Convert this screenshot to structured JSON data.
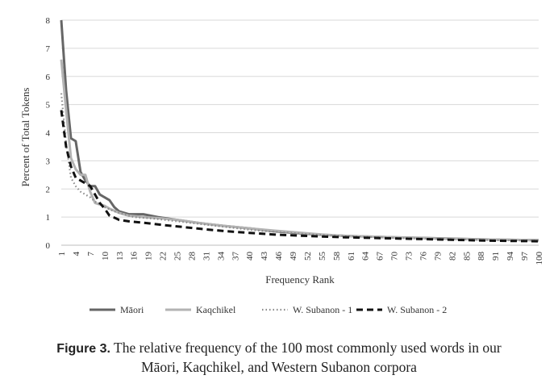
{
  "chart_data": {
    "type": "line",
    "xlabel": "Frequency Rank",
    "ylabel": "Percent of Total Tokens",
    "xlim": [
      1,
      100
    ],
    "ylim": [
      0,
      8
    ],
    "yticks": [
      0,
      1,
      2,
      3,
      4,
      5,
      6,
      7,
      8
    ],
    "xticks": [
      1,
      4,
      7,
      10,
      13,
      16,
      19,
      22,
      25,
      28,
      31,
      34,
      37,
      40,
      43,
      46,
      49,
      52,
      55,
      58,
      61,
      64,
      67,
      70,
      73,
      76,
      79,
      82,
      85,
      88,
      91,
      94,
      97,
      100
    ],
    "grid": "horizontal",
    "legend_position": "bottom",
    "series": [
      {
        "name": "Māori",
        "color": "#666666",
        "dash": "solid",
        "points": [
          [
            1,
            8.0
          ],
          [
            2,
            5.5
          ],
          [
            3,
            3.8
          ],
          [
            4,
            3.7
          ],
          [
            5,
            2.6
          ],
          [
            6,
            2.3
          ],
          [
            7,
            2.1
          ],
          [
            8,
            2.1
          ],
          [
            9,
            1.8
          ],
          [
            10,
            1.7
          ],
          [
            11,
            1.6
          ],
          [
            12,
            1.35
          ],
          [
            13,
            1.2
          ],
          [
            15,
            1.1
          ],
          [
            18,
            1.1
          ],
          [
            21,
            1.0
          ],
          [
            25,
            0.9
          ],
          [
            30,
            0.78
          ],
          [
            35,
            0.68
          ],
          [
            40,
            0.6
          ],
          [
            45,
            0.5
          ],
          [
            50,
            0.43
          ],
          [
            55,
            0.37
          ],
          [
            60,
            0.33
          ],
          [
            70,
            0.28
          ],
          [
            80,
            0.24
          ],
          [
            90,
            0.2
          ],
          [
            100,
            0.18
          ]
        ]
      },
      {
        "name": "Kaqchikel",
        "color": "#b3b3b3",
        "dash": "solid",
        "points": [
          [
            1,
            6.6
          ],
          [
            2,
            4.8
          ],
          [
            3,
            3.1
          ],
          [
            4,
            2.7
          ],
          [
            5,
            2.5
          ],
          [
            6,
            2.5
          ],
          [
            7,
            1.9
          ],
          [
            8,
            1.5
          ],
          [
            9,
            1.45
          ],
          [
            10,
            1.4
          ],
          [
            11,
            1.3
          ],
          [
            13,
            1.15
          ],
          [
            15,
            1.05
          ],
          [
            18,
            1.0
          ],
          [
            22,
            0.95
          ],
          [
            26,
            0.88
          ],
          [
            30,
            0.78
          ],
          [
            35,
            0.68
          ],
          [
            40,
            0.6
          ],
          [
            45,
            0.52
          ],
          [
            50,
            0.45
          ],
          [
            55,
            0.38
          ],
          [
            60,
            0.33
          ],
          [
            70,
            0.28
          ],
          [
            80,
            0.23
          ],
          [
            90,
            0.2
          ],
          [
            100,
            0.18
          ]
        ]
      },
      {
        "name": "W. Subanon - 1",
        "color": "#8a8a8a",
        "dash": "dotted",
        "points": [
          [
            1,
            5.4
          ],
          [
            2,
            3.6
          ],
          [
            3,
            2.4
          ],
          [
            4,
            2.1
          ],
          [
            5,
            1.9
          ],
          [
            6,
            1.8
          ],
          [
            7,
            1.7
          ],
          [
            8,
            1.55
          ],
          [
            9,
            1.45
          ],
          [
            10,
            1.35
          ],
          [
            12,
            1.2
          ],
          [
            14,
            1.1
          ],
          [
            16,
            1.0
          ],
          [
            20,
            0.95
          ],
          [
            25,
            0.85
          ],
          [
            30,
            0.75
          ],
          [
            35,
            0.65
          ],
          [
            40,
            0.55
          ],
          [
            45,
            0.48
          ],
          [
            50,
            0.42
          ],
          [
            55,
            0.36
          ],
          [
            60,
            0.32
          ],
          [
            70,
            0.26
          ],
          [
            80,
            0.22
          ],
          [
            90,
            0.18
          ],
          [
            100,
            0.16
          ]
        ]
      },
      {
        "name": "W. Subanon - 2",
        "color": "#111111",
        "dash": "dashed",
        "points": [
          [
            1,
            4.8
          ],
          [
            2,
            3.5
          ],
          [
            3,
            2.8
          ],
          [
            4,
            2.4
          ],
          [
            5,
            2.3
          ],
          [
            6,
            2.2
          ],
          [
            7,
            2.1
          ],
          [
            8,
            1.8
          ],
          [
            9,
            1.5
          ],
          [
            10,
            1.3
          ],
          [
            11,
            1.05
          ],
          [
            12,
            0.98
          ],
          [
            13,
            0.9
          ],
          [
            15,
            0.85
          ],
          [
            18,
            0.8
          ],
          [
            22,
            0.72
          ],
          [
            26,
            0.65
          ],
          [
            30,
            0.58
          ],
          [
            35,
            0.5
          ],
          [
            40,
            0.44
          ],
          [
            45,
            0.38
          ],
          [
            50,
            0.34
          ],
          [
            55,
            0.31
          ],
          [
            60,
            0.28
          ],
          [
            70,
            0.24
          ],
          [
            80,
            0.2
          ],
          [
            90,
            0.16
          ],
          [
            100,
            0.14
          ]
        ]
      }
    ]
  },
  "caption": {
    "lead": "Figure 3.",
    "line1": " The relative frequency of the 100 most commonly used words in our",
    "line2": "Māori, Kaqchikel, and Western Subanon corpora"
  }
}
